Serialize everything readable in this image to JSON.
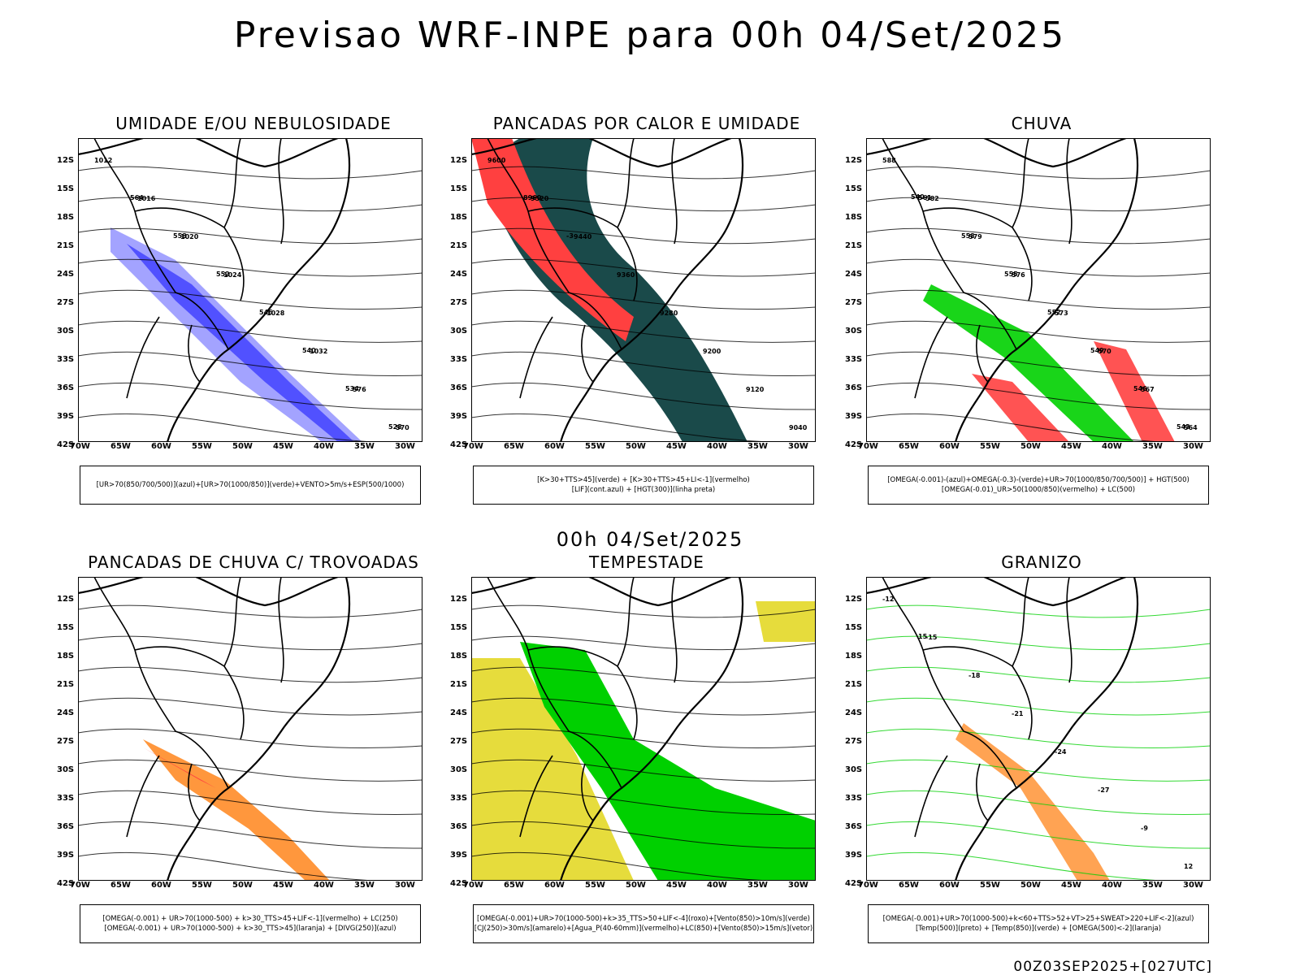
{
  "main_title": "Previsao WRF-INPE  para 00h 04/Set/2025",
  "mid_title": "00h 04/Set/2025",
  "footer": "00Z03SEP2025+[027UTC]",
  "lat_labels": [
    "12S",
    "15S",
    "18S",
    "21S",
    "24S",
    "27S",
    "30S",
    "33S",
    "36S",
    "39S",
    "42S"
  ],
  "lon_labels": [
    "70W",
    "65W",
    "60W",
    "55W",
    "50W",
    "45W",
    "40W",
    "35W",
    "30W"
  ],
  "colors": {
    "red": "#ff4040",
    "blue": "#3c3cff",
    "green": "#00d000",
    "darkteal": "#1a4a4a",
    "yellow": "#e6dc3c",
    "orange": "#ff8c28",
    "lightblue": "#8c8cff"
  },
  "panels": [
    {
      "title": "UMIDADE E/OU NEBULOSIDADE",
      "legend": [
        "[UR>70(850/700/500)](azul)+[UR>70(1000/850)](verde)+VENTO>5m/s+ESP(500/1000)"
      ],
      "contour_labels": [
        "1012",
        "1016",
        "1020",
        "1024",
        "1028",
        "1032",
        "576",
        "570",
        "564",
        "558",
        "552",
        "546",
        "540",
        "534",
        "528"
      ]
    },
    {
      "title": "PANCADAS POR CALOR E UMIDADE",
      "legend": [
        "[K>30+TTS>45](verde) + [K>30+TTS>45+LI<-1](vermelho)",
        "[LIF](cont.azul) + [HGT(300)](linha preta)"
      ],
      "contour_labels": [
        "9600",
        "9520",
        "9440",
        "9360",
        "9280",
        "9200",
        "9120",
        "9040",
        "8960",
        "-3"
      ]
    },
    {
      "title": "CHUVA",
      "legend": [
        "[OMEGA(-0.001)-(azul)+OMEGA(-0.3)-(verde)+UR>70(1000/850/700/500)] + HGT(500)",
        "[OMEGA(-0.01)_UR>50(1000/850)(vermelho) + LC(500)"
      ],
      "contour_labels": [
        "588",
        "582",
        "579",
        "576",
        "573",
        "570",
        "567",
        "564",
        "561",
        "558",
        "555",
        "552",
        "549",
        "546",
        "543",
        "540"
      ]
    },
    {
      "title": "PANCADAS DE CHUVA C/ TROVOADAS",
      "legend": [
        "[OMEGA(-0.001) + UR>70(1000-500) + k>30_TTS>45+LIF<-1](vermelho) + LC(250)",
        "[OMEGA(-0.001) + UR>70(1000-500) + k>30_TTS>45](laranja) + [DIVG(250)](azul)"
      ],
      "contour_labels": []
    },
    {
      "title": "TEMPESTADE",
      "legend": [
        "[OMEGA(-0.001)+UR>70(1000-500)+k>35_TTS>50+LIF<-4](roxo)+[Vento(850)>10m/s](verde)",
        "[CJ(250)>30m/s](amarelo)+[Agua_P(40-60mm)](vermelho)+LC(850)+[Vento(850)>15m/s](vetor)"
      ],
      "contour_labels": []
    },
    {
      "title": "GRANIZO",
      "legend": [
        "[OMEGA(-0.001)+UR>70(1000-500)+k<60+TTS>52+VT>25+SWEAT>220+LIF<-2](azul)",
        "[Temp(500)](preto) + [Temp(850)](verde) + [OMEGA(500)<-2](laranja)"
      ],
      "contour_labels": [
        "-12",
        "-15",
        "-18",
        "-21",
        "-24",
        "-27",
        "-9",
        "12",
        "15"
      ]
    }
  ]
}
